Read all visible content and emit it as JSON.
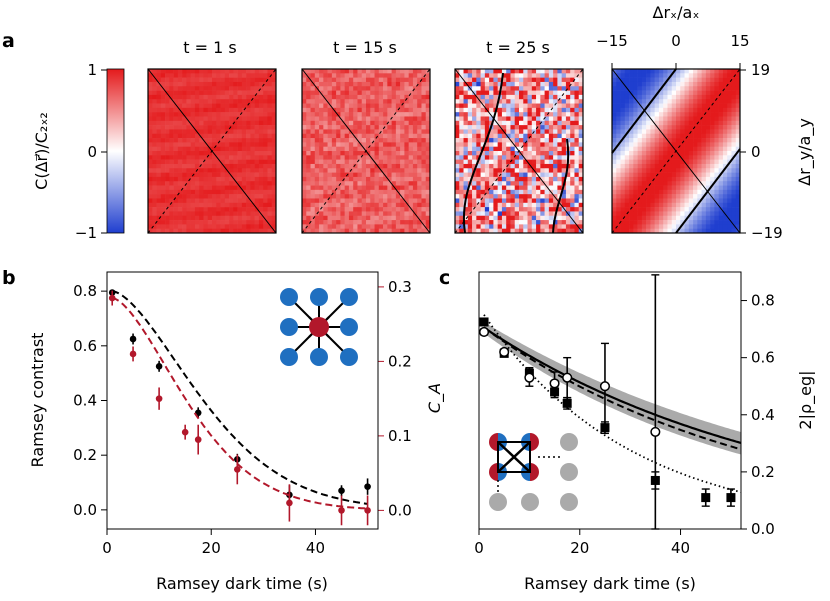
{
  "panel_labels": {
    "a": "a",
    "b": "b",
    "c": "c"
  },
  "panel_a": {
    "colorbar": {
      "label": "C(Δr⃗)/C₂ₓ₂",
      "ticks": [
        "1",
        "0",
        "−1"
      ],
      "colors": {
        "high": "#e41a1c",
        "mid": "#ffffff",
        "low": "#1f3ecf"
      }
    },
    "maps": [
      {
        "title": "t = 1 s",
        "noise": 0.04,
        "level": 0.9,
        "contour": false
      },
      {
        "title": "t = 15 s",
        "noise": 0.18,
        "level": 0.7,
        "contour": false
      },
      {
        "title": "t = 25 s",
        "noise": 0.75,
        "level": 0.35,
        "contour": true
      },
      {
        "title": "",
        "model": true
      }
    ],
    "top_axis": {
      "label": "Δrₓ/aₓ",
      "ticks": [
        "−15",
        "0",
        "15"
      ]
    },
    "right_axis": {
      "label": "Δr_y/a_y",
      "ticks": [
        "19",
        "0",
        "−19"
      ]
    }
  },
  "chart_data": [
    {
      "panel": "b",
      "type": "scatter",
      "xlabel": "Ramsey dark time (s)",
      "ylabel": "Ramsey contrast",
      "ylabel_right": "C_A",
      "xlim": [
        0,
        52
      ],
      "ylim": [
        -0.07,
        0.87
      ],
      "ylim_right": [
        -0.025,
        0.32
      ],
      "xticks": [
        0,
        20,
        40
      ],
      "yticks": [
        0.0,
        0.2,
        0.4,
        0.6,
        0.8
      ],
      "yticks_right": [
        0.0,
        0.1,
        0.2,
        0.3
      ],
      "series": [
        {
          "axis": "left",
          "color": "#000000",
          "x": [
            1,
            5,
            10,
            17.5,
            25,
            35,
            45,
            50
          ],
          "y": [
            0.795,
            0.625,
            0.525,
            0.355,
            0.185,
            0.055,
            0.07,
            0.085
          ],
          "err": [
            0.01,
            0.02,
            0.02,
            0.02,
            0.02,
            0.035,
            0.02,
            0.03
          ],
          "fit_y0": 0.8,
          "fit_tau": 22,
          "fit_color": "#000000"
        },
        {
          "axis": "right",
          "color": "#b2182b",
          "x": [
            1,
            5,
            10,
            15,
            17.5,
            25,
            35,
            45,
            50
          ],
          "y": [
            0.285,
            0.21,
            0.15,
            0.105,
            0.095,
            0.055,
            0.01,
            0.0,
            0.0
          ],
          "err": [
            0.01,
            0.01,
            0.015,
            0.01,
            0.02,
            0.02,
            0.025,
            0.02,
            0.02
          ],
          "fit_y0": 0.285,
          "fit_tau": 18.5,
          "fit_color": "#b2182b"
        }
      ],
      "inset": {
        "center_color": "#b2182b",
        "neighbor_color": "#1f6fc0"
      }
    },
    {
      "panel": "c",
      "type": "scatter",
      "xlabel": "Ramsey dark time (s)",
      "ylabel_right": "2|ρ_eg|",
      "xlim": [
        0,
        52
      ],
      "ylim": [
        0.0,
        0.9
      ],
      "xticks": [
        0,
        20,
        40
      ],
      "yticks_right": [
        0.0,
        0.2,
        0.4,
        0.6,
        0.8
      ],
      "series": [
        {
          "marker": "square-filled",
          "color": "#000000",
          "x": [
            1,
            5,
            10,
            15,
            17.5,
            25,
            35,
            45,
            50
          ],
          "y": [
            0.725,
            0.615,
            0.545,
            0.48,
            0.44,
            0.355,
            0.17,
            0.11,
            0.11
          ],
          "err": [
            0.01,
            0.01,
            0.02,
            0.02,
            0.02,
            0.02,
            0.03,
            0.03,
            0.03
          ]
        },
        {
          "marker": "circle-open",
          "color": "#000000",
          "x": [
            1,
            5,
            10,
            15,
            17.5,
            25,
            35
          ],
          "y": [
            0.69,
            0.62,
            0.53,
            0.51,
            0.53,
            0.5,
            0.34
          ],
          "err": [
            0.01,
            0.01,
            0.03,
            0.04,
            0.07,
            0.15,
            0.55
          ]
        }
      ],
      "curves": [
        {
          "style": "solid",
          "color": "#000000",
          "y0": 0.705,
          "tau": 60,
          "band": 0.02
        },
        {
          "style": "dashed",
          "color": "#000000",
          "y0": 0.705,
          "tau": 55
        },
        {
          "style": "dotted",
          "color": "#000000",
          "y0": 0.75,
          "tau": 29
        }
      ],
      "inset": {
        "left_color": "#b2182b",
        "right_color": "#1f6fc0",
        "idle_color": "#aaaaaa"
      }
    }
  ]
}
